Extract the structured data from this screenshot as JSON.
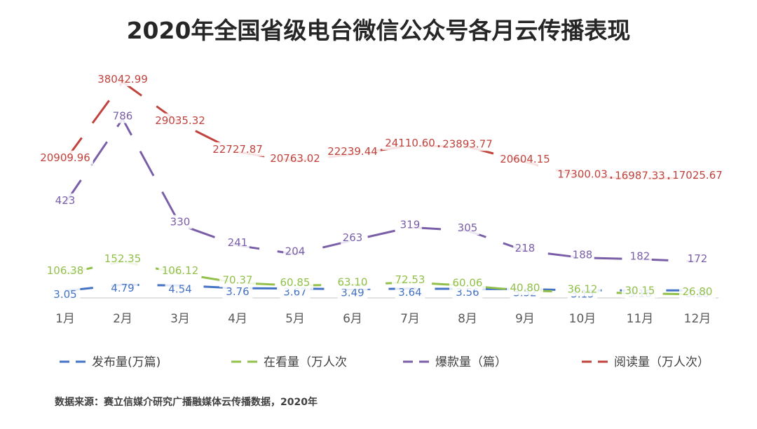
{
  "chart_data": {
    "type": "line",
    "title": "2020年全国省级电台微信公众号各月云传播表现",
    "categories": [
      "1月",
      "2月",
      "3月",
      "4月",
      "5月",
      "6月",
      "7月",
      "8月",
      "9月",
      "10月",
      "11月",
      "12月"
    ],
    "series": [
      {
        "name": "发布量(万篇)",
        "color": "#4472c4",
        "values": [
          3.05,
          4.79,
          4.54,
          3.76,
          3.67,
          3.49,
          3.64,
          3.56,
          3.52,
          3.15,
          3.16,
          3.16
        ],
        "labels": [
          "3.05",
          "4.79",
          "4.54",
          "3.76",
          "3.67",
          "3.49",
          "3.64",
          "3.56",
          "3.52",
          "3.15",
          "3.16",
          "3.16"
        ]
      },
      {
        "name": "在看量（万人次",
        "color": "#92c04a",
        "values": [
          106.38,
          152.35,
          106.12,
          70.37,
          60.85,
          63.1,
          72.53,
          60.06,
          40.8,
          36.12,
          30.15,
          26.8
        ],
        "labels": [
          "106.38",
          "152.35",
          "106.12",
          "70.37",
          "60.85",
          "63.10",
          "72.53",
          "60.06",
          "40.80",
          "36.12",
          "30.15",
          "26.80"
        ]
      },
      {
        "name": "爆款量（篇）",
        "color": "#7a5fa8",
        "values": [
          423,
          786,
          330,
          241,
          204,
          263,
          319,
          305,
          218,
          188,
          182,
          172
        ],
        "labels": [
          "423",
          "786",
          "330",
          "241",
          "204",
          "263",
          "319",
          "305",
          "218",
          "188",
          "182",
          "172"
        ]
      },
      {
        "name": "阅读量（万人次）",
        "color": "#c0433d",
        "values": [
          20909.96,
          38042.99,
          29035.32,
          22727.87,
          20763.02,
          22239.44,
          24110.6,
          23893.77,
          20604.15,
          17300.03,
          16987.33,
          17025.67
        ],
        "labels": [
          "20909.96",
          "38042.99",
          "29035.32",
          "22727.87",
          "20763.02",
          "22239.44",
          "24110.60",
          "23893.77",
          "20604.15",
          "17300.03",
          "16987.33",
          "17025.67"
        ]
      }
    ],
    "legend_position": "bottom",
    "grid": false
  },
  "source_note": "数据来源：赛立信媒介研究广播融媒体云传播数据，2020年"
}
